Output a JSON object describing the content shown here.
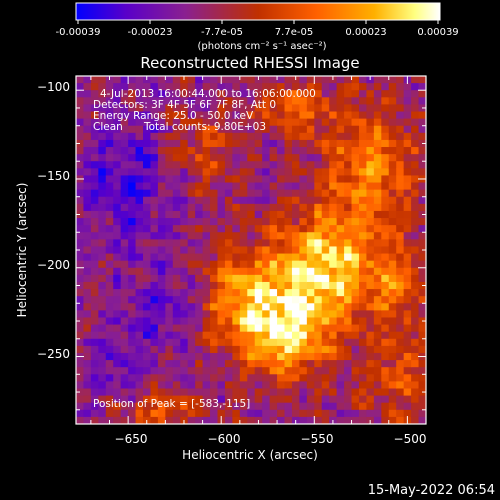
{
  "colorbar": {
    "tick_labels": [
      "-0.00039",
      "-0.00023",
      "-7.7e-05",
      "7.7e-05",
      "0.00023",
      "0.00039"
    ],
    "units_label": "(photons cm⁻² s⁻¹ asec⁻²)",
    "colors": [
      "#0000ff",
      "#5a00c8",
      "#8a2090",
      "#c03000",
      "#ff6000",
      "#ffb000",
      "#ffff80",
      "#ffffff"
    ]
  },
  "image_info": {
    "time_range": "4-Jul-2013 16:00:44.000 to 16:06:00.000",
    "detectors": "Detectors: 3F 4F 5F 6F 7F 8F, Att 0",
    "energy_range": "Energy Range: 25.0 - 50.0 keV",
    "algorithm": "Clean",
    "total_counts": "Total counts: 9.80E+03",
    "peak_position": "Position of Peak = [-583,-115]"
  },
  "timestamp": "15-May-2022 06:54",
  "chart_data": {
    "type": "heatmap",
    "title": "Reconstructed RHESSI Image",
    "xlabel": "Heliocentric X (arcsec)",
    "ylabel": "Heliocentric Y (arcsec)",
    "xlim": [
      -678,
      -490
    ],
    "ylim": [
      -288,
      -92
    ],
    "x_ticks": [
      -650,
      -600,
      -550,
      -500
    ],
    "x_tick_labels": [
      "−650",
      "−600",
      "−550",
      "−500"
    ],
    "y_ticks": [
      -100,
      -150,
      -200,
      -250
    ],
    "y_tick_labels": [
      "−100",
      "−150",
      "−200",
      "−250"
    ],
    "color_range": [
      -0.00039,
      0.00039
    ],
    "peak": [
      -583,
      -115
    ],
    "hot_regions": [
      {
        "x": -545,
        "y": -200,
        "sx": 28,
        "sy": 30,
        "amp": 1.0
      },
      {
        "x": -565,
        "y": -238,
        "sx": 25,
        "sy": 25,
        "amp": 0.9
      },
      {
        "x": -590,
        "y": -215,
        "sx": 22,
        "sy": 28,
        "amp": 0.7
      },
      {
        "x": -520,
        "y": -145,
        "sx": 25,
        "sy": 35,
        "amp": 0.7
      },
      {
        "x": -560,
        "y": -110,
        "sx": 20,
        "sy": 15,
        "amp": 0.6
      },
      {
        "x": -610,
        "y": -135,
        "sx": 20,
        "sy": 20,
        "amp": 0.4
      },
      {
        "x": -630,
        "y": -280,
        "sx": 20,
        "sy": 12,
        "amp": 0.5
      },
      {
        "x": -505,
        "y": -260,
        "sx": 20,
        "sy": 25,
        "amp": 0.45
      },
      {
        "x": -505,
        "y": -210,
        "sx": 15,
        "sy": 20,
        "amp": 0.55
      }
    ],
    "cold_regions": [
      {
        "x": -650,
        "y": -150,
        "sx": 25,
        "sy": 35,
        "amp": 0.7
      },
      {
        "x": -630,
        "y": -220,
        "sx": 25,
        "sy": 25,
        "amp": 0.5
      },
      {
        "x": -655,
        "y": -255,
        "sx": 20,
        "sy": 18,
        "amp": 0.45
      }
    ]
  }
}
